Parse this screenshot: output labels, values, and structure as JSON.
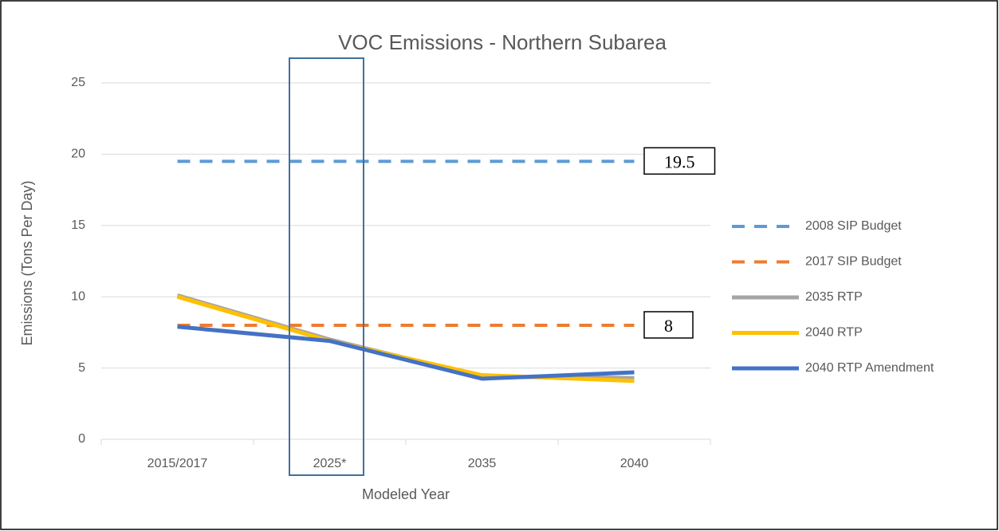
{
  "chart_data": {
    "type": "line",
    "title": "VOC Emissions - Northern Subarea",
    "x_label": "Modeled Year",
    "y_label": "Emissions (Tons Per Day)",
    "categories": [
      "2015/2017",
      "2025*",
      "2035",
      "2040"
    ],
    "series": [
      {
        "name": "2008 SIP Budget",
        "color": "#5b9bd5",
        "dashed": true,
        "values": [
          19.5,
          19.5,
          19.5,
          19.5
        ]
      },
      {
        "name": "2017 SIP Budget",
        "color": "#ed7d31",
        "dashed": true,
        "values": [
          8,
          8,
          8,
          8
        ]
      },
      {
        "name": "2035 RTP",
        "color": "#a5a5a5",
        "dashed": false,
        "values": [
          10.1,
          7.0,
          4.4,
          4.3
        ]
      },
      {
        "name": "2040 RTP",
        "color": "#ffc000",
        "dashed": false,
        "values": [
          10.0,
          6.9,
          4.5,
          4.1
        ]
      },
      {
        "name": "2040 RTP Amendment",
        "color": "#4472c4",
        "dashed": false,
        "values": [
          7.9,
          6.9,
          4.25,
          4.7
        ]
      }
    ],
    "annotations": [
      "19.5",
      "8"
    ],
    "ylim": [
      0,
      25
    ],
    "yticks": [
      0,
      5,
      10,
      15,
      20,
      25
    ],
    "grid": true,
    "legend": "right"
  }
}
